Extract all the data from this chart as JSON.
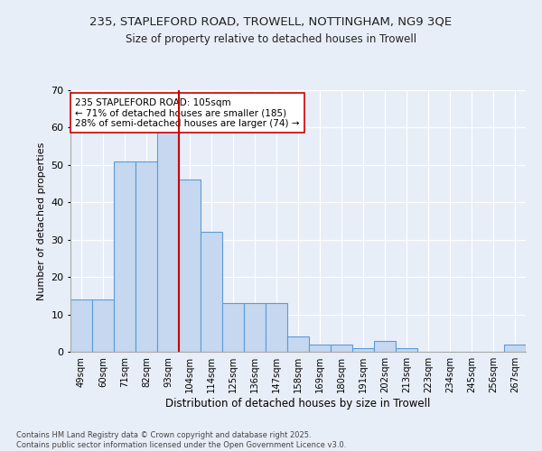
{
  "title1": "235, STAPLEFORD ROAD, TROWELL, NOTTINGHAM, NG9 3QE",
  "title2": "Size of property relative to detached houses in Trowell",
  "xlabel": "Distribution of detached houses by size in Trowell",
  "ylabel": "Number of detached properties",
  "categories": [
    "49sqm",
    "60sqm",
    "71sqm",
    "82sqm",
    "93sqm",
    "104sqm",
    "114sqm",
    "125sqm",
    "136sqm",
    "147sqm",
    "158sqm",
    "169sqm",
    "180sqm",
    "191sqm",
    "202sqm",
    "213sqm",
    "223sqm",
    "234sqm",
    "245sqm",
    "256sqm",
    "267sqm"
  ],
  "values": [
    14,
    14,
    51,
    51,
    59,
    46,
    32,
    13,
    13,
    13,
    4,
    2,
    2,
    1,
    3,
    1,
    0,
    0,
    0,
    0,
    2
  ],
  "bar_color": "#c5d8f0",
  "bar_edge_color": "#5b9bd5",
  "vline_color": "#cc0000",
  "annotation_text": "235 STAPLEFORD ROAD: 105sqm\n← 71% of detached houses are smaller (185)\n28% of semi-detached houses are larger (74) →",
  "annotation_box_color": "#ffffff",
  "annotation_box_edge": "#cc0000",
  "footer": "Contains HM Land Registry data © Crown copyright and database right 2025.\nContains public sector information licensed under the Open Government Licence v3.0.",
  "ylim": [
    0,
    70
  ],
  "background_color": "#e8eef8",
  "grid_color": "#ffffff"
}
